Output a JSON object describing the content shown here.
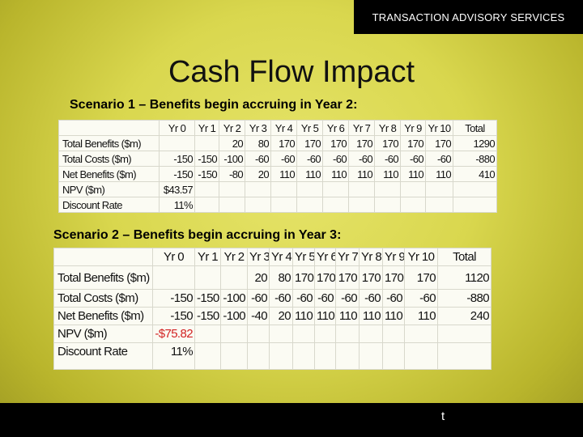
{
  "header": {
    "label": "TRANSACTION ADVISORY SERVICES"
  },
  "title": "Cash Flow Impact",
  "scenario1": {
    "heading": "Scenario 1 – Benefits begin accruing in Year 2:",
    "columns": [
      "",
      "Yr 0",
      "Yr 1",
      "Yr 2",
      "Yr 3",
      "Yr 4",
      "Yr 5",
      "Yr 6",
      "Yr 7",
      "Yr 8",
      "Yr 9",
      "Yr 10",
      "Total"
    ],
    "rows": [
      [
        "Total Benefits ($m)",
        "",
        "",
        "20",
        "80",
        "170",
        "170",
        "170",
        "170",
        "170",
        "170",
        "170",
        "1290"
      ],
      [
        "Total Costs ($m)",
        "-150",
        "-150",
        "-100",
        "-60",
        "-60",
        "-60",
        "-60",
        "-60",
        "-60",
        "-60",
        "-60",
        "-880"
      ],
      [
        "Net Benefits ($m)",
        "-150",
        "-150",
        "-80",
        "20",
        "110",
        "110",
        "110",
        "110",
        "110",
        "110",
        "110",
        "410"
      ]
    ],
    "npv_label": "NPV ($m)",
    "npv_value": "$43.57",
    "rate_label": "Discount Rate",
    "rate_value": "11%"
  },
  "scenario2": {
    "heading": "Scenario 2 – Benefits begin accruing in Year 3:",
    "columns": [
      "",
      "Yr 0",
      "Yr 1",
      "Yr 2",
      "Yr 3",
      "Yr 4",
      "Yr 5",
      "Yr 6",
      "Yr 7",
      "Yr 8",
      "Yr 9",
      "Yr 10",
      "Total"
    ],
    "rows": [
      [
        "Total Benefits ($m)",
        "",
        "",
        "",
        "20",
        "80",
        "170",
        "170",
        "170",
        "170",
        "170",
        "170",
        "1120"
      ],
      [
        "Total Costs ($m)",
        "-150",
        "-150",
        "-100",
        "-60",
        "-60",
        "-60",
        "-60",
        "-60",
        "-60",
        "-60",
        "-60",
        "-880"
      ],
      [
        "Net Benefits ($m)",
        "-150",
        "-150",
        "-100",
        "-40",
        "20",
        "110",
        "110",
        "110",
        "110",
        "110",
        "110",
        "240"
      ]
    ],
    "npv_label": "NPV ($m)",
    "npv_value": "-$75.82",
    "rate_label": "Discount Rate",
    "rate_value": "11%",
    "npv_color": "#d22222"
  },
  "footer": {
    "mark": "t"
  }
}
